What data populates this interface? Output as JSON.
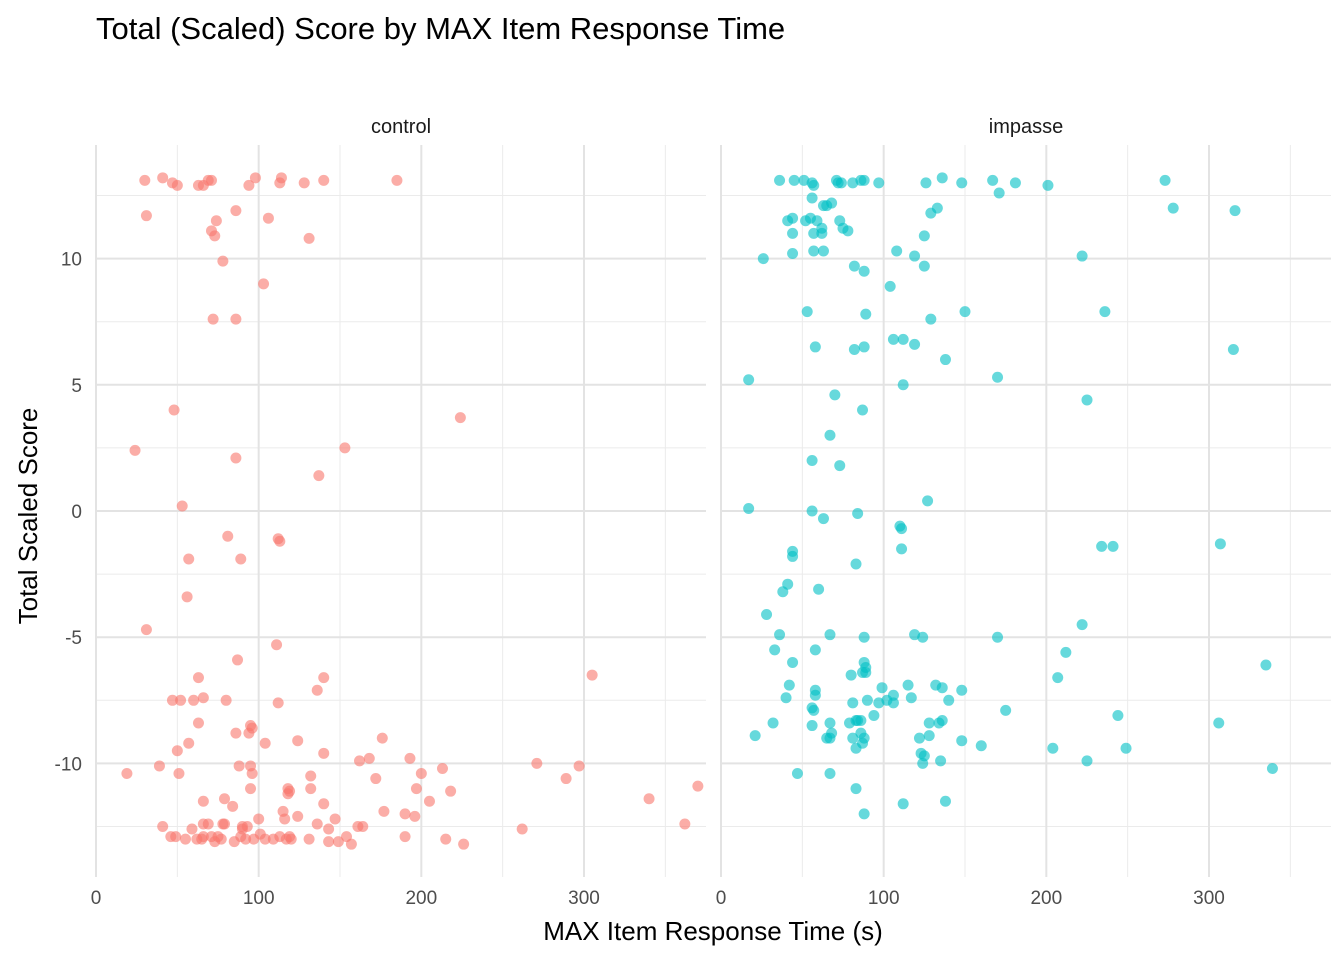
{
  "chart_data": {
    "type": "scatter",
    "title": "Total (Scaled) Score by MAX Item Response Time",
    "xlabel": "MAX Item Response Time (s)",
    "ylabel": "Total Scaled Score",
    "xlim": [
      0,
      375
    ],
    "ylim": [
      -14.5,
      14.5
    ],
    "x_ticks": [
      0,
      100,
      200,
      300
    ],
    "y_ticks": [
      -10,
      -5,
      0,
      5,
      10
    ],
    "x_tick_labels": [
      "0",
      "100",
      "200",
      "300"
    ],
    "y_tick_labels": [
      "-10",
      "-5",
      "0",
      "5",
      "10"
    ],
    "grid": true,
    "legend": "none",
    "facets": [
      {
        "label": "control",
        "color": "#F8766D",
        "points": [
          [
            30,
            13.1
          ],
          [
            41,
            13.2
          ],
          [
            47,
            13.0
          ],
          [
            50,
            12.9
          ],
          [
            63,
            12.9
          ],
          [
            66,
            12.9
          ],
          [
            69,
            13.1
          ],
          [
            71,
            13.1
          ],
          [
            94,
            12.9
          ],
          [
            98,
            13.2
          ],
          [
            113,
            13.0
          ],
          [
            114,
            13.2
          ],
          [
            128,
            13.0
          ],
          [
            140,
            13.1
          ],
          [
            185,
            13.1
          ],
          [
            31,
            11.7
          ],
          [
            74,
            11.5
          ],
          [
            86,
            11.9
          ],
          [
            106,
            11.6
          ],
          [
            71,
            11.1
          ],
          [
            73,
            10.9
          ],
          [
            131,
            10.8
          ],
          [
            78,
            9.9
          ],
          [
            103,
            9.0
          ],
          [
            72,
            7.6
          ],
          [
            86,
            7.6
          ],
          [
            48,
            4.0
          ],
          [
            224,
            3.7
          ],
          [
            24,
            2.4
          ],
          [
            86,
            2.1
          ],
          [
            153,
            2.5
          ],
          [
            137,
            1.4
          ],
          [
            53,
            0.2
          ],
          [
            81,
            -1.0
          ],
          [
            112,
            -1.1
          ],
          [
            113,
            -1.2
          ],
          [
            57,
            -1.9
          ],
          [
            89,
            -1.9
          ],
          [
            56,
            -3.4
          ],
          [
            31,
            -4.7
          ],
          [
            111,
            -5.3
          ],
          [
            87,
            -5.9
          ],
          [
            63,
            -6.6
          ],
          [
            140,
            -6.6
          ],
          [
            305,
            -6.5
          ],
          [
            136,
            -7.1
          ],
          [
            47,
            -7.5
          ],
          [
            52,
            -7.5
          ],
          [
            60,
            -7.5
          ],
          [
            66,
            -7.4
          ],
          [
            80,
            -7.5
          ],
          [
            112,
            -7.6
          ],
          [
            63,
            -8.4
          ],
          [
            95,
            -8.5
          ],
          [
            96,
            -8.6
          ],
          [
            86,
            -8.8
          ],
          [
            94,
            -8.8
          ],
          [
            57,
            -9.2
          ],
          [
            50,
            -9.5
          ],
          [
            104,
            -9.2
          ],
          [
            124,
            -9.1
          ],
          [
            140,
            -9.6
          ],
          [
            176,
            -9.0
          ],
          [
            19,
            -10.4
          ],
          [
            39,
            -10.1
          ],
          [
            51,
            -10.4
          ],
          [
            88,
            -10.1
          ],
          [
            95,
            -10.1
          ],
          [
            96,
            -10.4
          ],
          [
            132,
            -10.5
          ],
          [
            162,
            -9.9
          ],
          [
            168,
            -9.8
          ],
          [
            172,
            -10.6
          ],
          [
            193,
            -9.8
          ],
          [
            200,
            -10.4
          ],
          [
            213,
            -10.2
          ],
          [
            271,
            -10.0
          ],
          [
            289,
            -10.6
          ],
          [
            297,
            -10.1
          ],
          [
            370,
            -10.9
          ],
          [
            95,
            -11.0
          ],
          [
            118,
            -11.0
          ],
          [
            118,
            -11.2
          ],
          [
            119,
            -11.1
          ],
          [
            132,
            -11.0
          ],
          [
            197,
            -11.0
          ],
          [
            218,
            -11.1
          ],
          [
            66,
            -11.5
          ],
          [
            79,
            -11.4
          ],
          [
            84,
            -11.7
          ],
          [
            115,
            -11.9
          ],
          [
            140,
            -11.6
          ],
          [
            177,
            -11.9
          ],
          [
            190,
            -12.0
          ],
          [
            196,
            -12.1
          ],
          [
            205,
            -11.5
          ],
          [
            340,
            -11.4
          ],
          [
            41,
            -12.5
          ],
          [
            59,
            -12.6
          ],
          [
            66,
            -12.4
          ],
          [
            69,
            -12.4
          ],
          [
            78,
            -12.4
          ],
          [
            79,
            -12.4
          ],
          [
            90,
            -12.5
          ],
          [
            90,
            -12.6
          ],
          [
            93,
            -12.5
          ],
          [
            100,
            -12.2
          ],
          [
            116,
            -12.2
          ],
          [
            124,
            -12.1
          ],
          [
            136,
            -12.4
          ],
          [
            143,
            -12.6
          ],
          [
            147,
            -12.2
          ],
          [
            161,
            -12.5
          ],
          [
            164,
            -12.5
          ],
          [
            262,
            -12.6
          ],
          [
            362,
            -12.4
          ],
          [
            46,
            -12.9
          ],
          [
            49,
            -12.9
          ],
          [
            55,
            -13.0
          ],
          [
            62,
            -13.0
          ],
          [
            65,
            -13.0
          ],
          [
            66,
            -12.9
          ],
          [
            71,
            -12.9
          ],
          [
            73,
            -13.1
          ],
          [
            75,
            -12.9
          ],
          [
            77,
            -13.0
          ],
          [
            85,
            -13.1
          ],
          [
            89,
            -12.9
          ],
          [
            92,
            -13.0
          ],
          [
            97,
            -13.0
          ],
          [
            101,
            -12.8
          ],
          [
            104,
            -13.0
          ],
          [
            109,
            -13.0
          ],
          [
            113,
            -12.9
          ],
          [
            117,
            -13.0
          ],
          [
            119,
            -12.9
          ],
          [
            120,
            -13.0
          ],
          [
            131,
            -13.0
          ],
          [
            143,
            -13.1
          ],
          [
            149,
            -13.1
          ],
          [
            154,
            -12.9
          ],
          [
            157,
            -13.2
          ],
          [
            190,
            -12.9
          ],
          [
            215,
            -13.0
          ],
          [
            226,
            -13.2
          ]
        ]
      },
      {
        "label": "impasse",
        "color": "#00BFC4",
        "points": [
          [
            36,
            13.1
          ],
          [
            45,
            13.1
          ],
          [
            51,
            13.1
          ],
          [
            56,
            13.0
          ],
          [
            57,
            12.9
          ],
          [
            71,
            13.1
          ],
          [
            72,
            13.0
          ],
          [
            74,
            13.0
          ],
          [
            81,
            13.0
          ],
          [
            86,
            13.1
          ],
          [
            88,
            13.1
          ],
          [
            97,
            13.0
          ],
          [
            126,
            13.0
          ],
          [
            136,
            13.2
          ],
          [
            148,
            13.0
          ],
          [
            167,
            13.1
          ],
          [
            181,
            13.0
          ],
          [
            201,
            12.9
          ],
          [
            273,
            13.1
          ],
          [
            56,
            12.4
          ],
          [
            63,
            12.1
          ],
          [
            65,
            12.1
          ],
          [
            68,
            12.2
          ],
          [
            133,
            12.0
          ],
          [
            129,
            11.8
          ],
          [
            171,
            12.6
          ],
          [
            278,
            12.0
          ],
          [
            316,
            11.9
          ],
          [
            41,
            11.5
          ],
          [
            44,
            11.6
          ],
          [
            52,
            11.5
          ],
          [
            55,
            11.6
          ],
          [
            59,
            11.5
          ],
          [
            73,
            11.5
          ],
          [
            44,
            11.0
          ],
          [
            57,
            11.0
          ],
          [
            62,
            11.0
          ],
          [
            62,
            11.2
          ],
          [
            75,
            11.2
          ],
          [
            78,
            11.1
          ],
          [
            125,
            10.9
          ],
          [
            26,
            10.0
          ],
          [
            44,
            10.2
          ],
          [
            57,
            10.3
          ],
          [
            63,
            10.3
          ],
          [
            108,
            10.3
          ],
          [
            119,
            10.1
          ],
          [
            125,
            9.7
          ],
          [
            82,
            9.7
          ],
          [
            88,
            9.5
          ],
          [
            222,
            10.1
          ],
          [
            104,
            8.9
          ],
          [
            53,
            7.9
          ],
          [
            89,
            7.8
          ],
          [
            129,
            7.6
          ],
          [
            150,
            7.9
          ],
          [
            236,
            7.9
          ],
          [
            58,
            6.5
          ],
          [
            82,
            6.4
          ],
          [
            88,
            6.5
          ],
          [
            106,
            6.8
          ],
          [
            112,
            6.8
          ],
          [
            119,
            6.6
          ],
          [
            138,
            6.0
          ],
          [
            315,
            6.4
          ],
          [
            17,
            5.2
          ],
          [
            112,
            5.0
          ],
          [
            170,
            5.3
          ],
          [
            70,
            4.6
          ],
          [
            87,
            4.0
          ],
          [
            225,
            4.4
          ],
          [
            67,
            3.0
          ],
          [
            56,
            2.0
          ],
          [
            73,
            1.8
          ],
          [
            17,
            0.1
          ],
          [
            56,
            0.0
          ],
          [
            63,
            -0.3
          ],
          [
            84,
            -0.1
          ],
          [
            110,
            -0.6
          ],
          [
            111,
            -0.7
          ],
          [
            127,
            0.4
          ],
          [
            111,
            -1.5
          ],
          [
            44,
            -1.6
          ],
          [
            44,
            -1.8
          ],
          [
            234,
            -1.4
          ],
          [
            241,
            -1.4
          ],
          [
            307,
            -1.3
          ],
          [
            83,
            -2.1
          ],
          [
            41,
            -2.9
          ],
          [
            38,
            -3.2
          ],
          [
            60,
            -3.1
          ],
          [
            28,
            -4.1
          ],
          [
            36,
            -4.9
          ],
          [
            67,
            -4.9
          ],
          [
            88,
            -5.0
          ],
          [
            119,
            -4.9
          ],
          [
            124,
            -5.0
          ],
          [
            170,
            -5.0
          ],
          [
            222,
            -4.5
          ],
          [
            33,
            -5.5
          ],
          [
            58,
            -5.5
          ],
          [
            212,
            -5.6
          ],
          [
            44,
            -6.0
          ],
          [
            80,
            -6.5
          ],
          [
            88,
            -6.0
          ],
          [
            89,
            -6.2
          ],
          [
            89,
            -6.4
          ],
          [
            87,
            -6.4
          ],
          [
            335,
            -6.1
          ],
          [
            42,
            -6.9
          ],
          [
            58,
            -7.1
          ],
          [
            58,
            -7.3
          ],
          [
            99,
            -7.0
          ],
          [
            115,
            -6.9
          ],
          [
            132,
            -6.9
          ],
          [
            136,
            -7.0
          ],
          [
            148,
            -7.1
          ],
          [
            207,
            -6.6
          ],
          [
            21,
            -8.9
          ],
          [
            32,
            -8.4
          ],
          [
            40,
            -7.4
          ],
          [
            56,
            -7.8
          ],
          [
            57,
            -7.9
          ],
          [
            56,
            -8.5
          ],
          [
            67,
            -8.4
          ],
          [
            65,
            -9.0
          ],
          [
            67,
            -9.0
          ],
          [
            68,
            -8.8
          ],
          [
            79,
            -8.4
          ],
          [
            81,
            -7.6
          ],
          [
            81,
            -9.0
          ],
          [
            83,
            -8.3
          ],
          [
            84,
            -8.3
          ],
          [
            86,
            -8.3
          ],
          [
            86,
            -8.8
          ],
          [
            87,
            -9.2
          ],
          [
            88,
            -9.0
          ],
          [
            90,
            -7.5
          ],
          [
            94,
            -8.1
          ],
          [
            97,
            -7.6
          ],
          [
            102,
            -7.5
          ],
          [
            106,
            -7.3
          ],
          [
            106,
            -7.6
          ],
          [
            117,
            -7.4
          ],
          [
            122,
            -9.0
          ],
          [
            128,
            -8.9
          ],
          [
            128,
            -8.4
          ],
          [
            134,
            -8.4
          ],
          [
            136,
            -8.3
          ],
          [
            140,
            -7.5
          ],
          [
            148,
            -9.1
          ],
          [
            160,
            -9.3
          ],
          [
            175,
            -7.9
          ],
          [
            204,
            -9.4
          ],
          [
            244,
            -8.1
          ],
          [
            249,
            -9.4
          ],
          [
            306,
            -8.4
          ],
          [
            47,
            -10.4
          ],
          [
            67,
            -10.4
          ],
          [
            83,
            -9.4
          ],
          [
            123,
            -9.6
          ],
          [
            124,
            -10.0
          ],
          [
            125,
            -9.7
          ],
          [
            135,
            -9.9
          ],
          [
            225,
            -9.9
          ],
          [
            339,
            -10.2
          ],
          [
            83,
            -11.0
          ],
          [
            112,
            -11.6
          ],
          [
            138,
            -11.5
          ],
          [
            88,
            -12.0
          ]
        ]
      }
    ]
  }
}
